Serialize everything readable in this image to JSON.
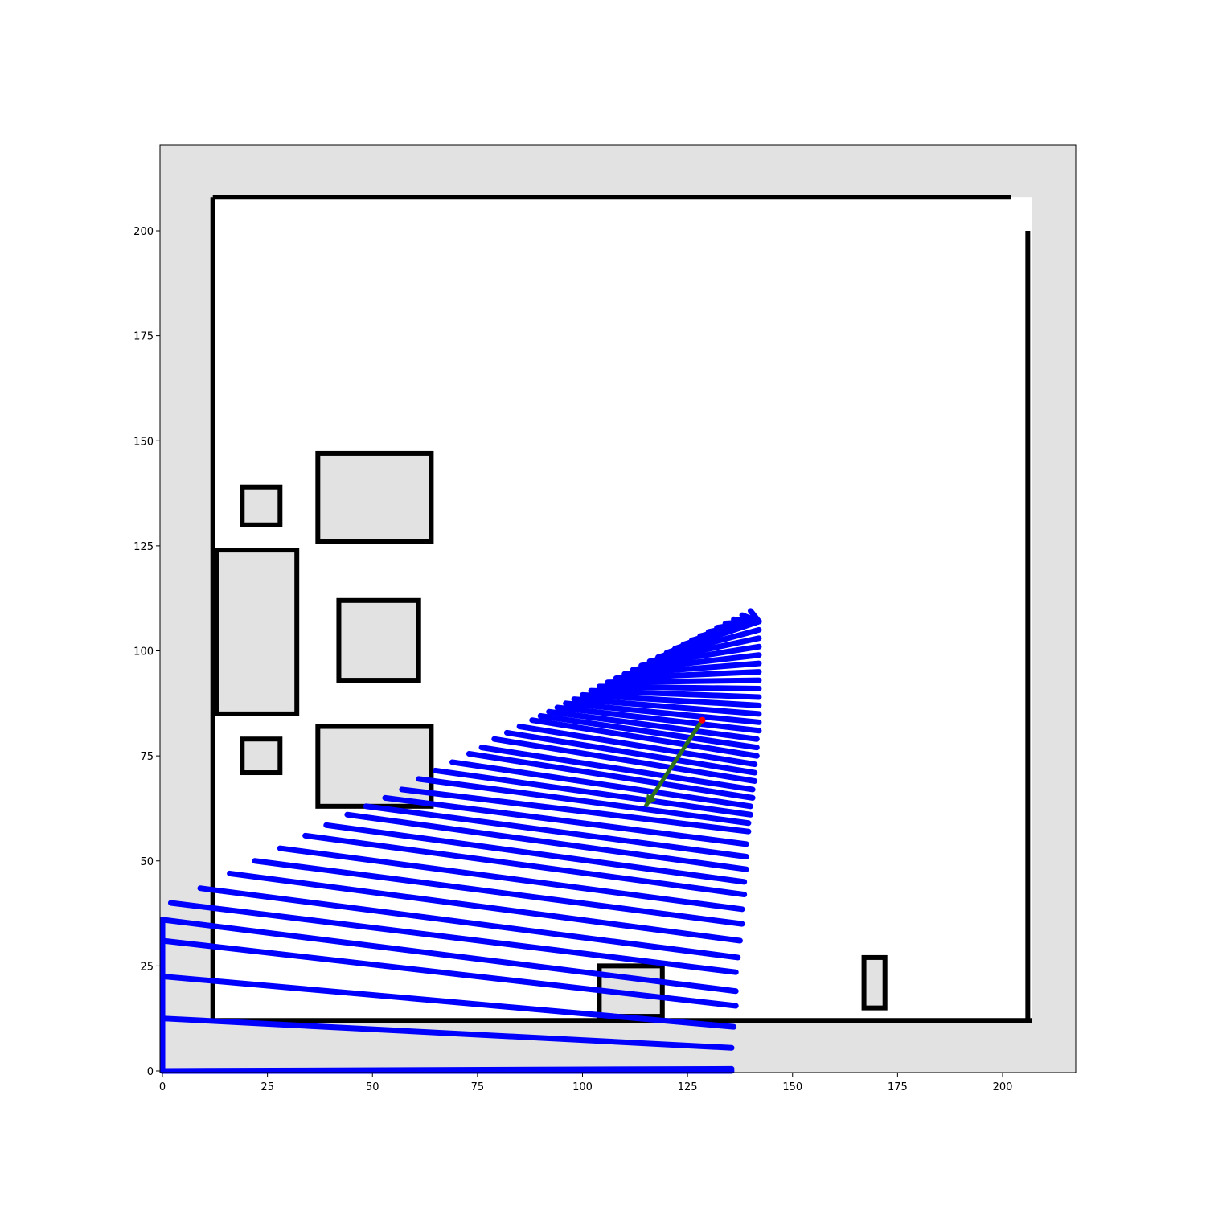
{
  "chart_data": {
    "type": "occupancy_grid_map",
    "title": "",
    "xlabel": "",
    "ylabel": "",
    "xlim": [
      0,
      218
    ],
    "ylim": [
      0,
      220
    ],
    "x_ticks": [
      0,
      25,
      50,
      75,
      100,
      125,
      150,
      175,
      200
    ],
    "y_ticks": [
      0,
      25,
      50,
      75,
      100,
      125,
      150,
      175,
      200
    ],
    "x_tick_labels": [
      "0",
      "25",
      "50",
      "75",
      "100",
      "125",
      "150",
      "175",
      "200"
    ],
    "y_tick_labels": [
      "0",
      "25",
      "50",
      "75",
      "100",
      "125",
      "150",
      "175",
      "200"
    ],
    "colors": {
      "unknown": "#e2e2e2",
      "free": "#ffffff",
      "occupied": "#000000",
      "rays": "#0000ff",
      "robot": "#ff0000",
      "heading_arrow": "#2e6f1a"
    },
    "robot_pose": {
      "x": 128.5,
      "y": 83.5
    },
    "heading_arrow": {
      "from": [
        128.5,
        83.5
      ],
      "to": [
        115,
        63
      ]
    },
    "ray_fan": {
      "description_origin": [
        142,
        110
      ],
      "endpoints": [
        [
          135.5,
          0.5
        ],
        [
          135.5,
          5.5
        ],
        [
          136,
          10.5
        ],
        [
          136.5,
          15.5
        ],
        [
          136.5,
          19
        ],
        [
          136.5,
          23.5
        ],
        [
          137,
          27
        ],
        [
          137.5,
          31
        ],
        [
          138,
          35
        ],
        [
          138,
          38.5
        ],
        [
          138.5,
          42
        ],
        [
          138.5,
          45
        ],
        [
          139,
          48
        ],
        [
          139,
          51
        ],
        [
          139,
          54
        ],
        [
          139.5,
          57
        ],
        [
          139.5,
          59
        ],
        [
          140,
          61
        ],
        [
          140,
          63
        ],
        [
          140.5,
          65
        ],
        [
          140.5,
          67
        ],
        [
          141,
          69
        ],
        [
          141,
          71
        ],
        [
          141,
          73
        ],
        [
          141.5,
          75
        ],
        [
          141.5,
          77
        ],
        [
          141.5,
          79
        ],
        [
          142,
          81
        ],
        [
          142,
          83
        ],
        [
          142,
          85
        ],
        [
          142,
          87
        ],
        [
          142,
          89
        ],
        [
          142,
          91
        ],
        [
          142,
          93
        ],
        [
          142,
          95
        ],
        [
          142,
          97
        ],
        [
          142,
          99
        ],
        [
          142,
          101
        ],
        [
          142,
          103
        ],
        [
          142,
          105
        ],
        [
          142,
          107
        ]
      ],
      "far_endpoints": [
        [
          0,
          0
        ],
        [
          0,
          12.5
        ],
        [
          0,
          22.5
        ],
        [
          0,
          31
        ],
        [
          0,
          36
        ],
        [
          2,
          40
        ],
        [
          9,
          43.5
        ],
        [
          16,
          47
        ],
        [
          22,
          50
        ],
        [
          28,
          53
        ],
        [
          34,
          56
        ],
        [
          39,
          58.5
        ],
        [
          44,
          61
        ],
        [
          48.5,
          63
        ],
        [
          53,
          65
        ],
        [
          57,
          67
        ],
        [
          61,
          69.5
        ],
        [
          65,
          71.5
        ],
        [
          69,
          73.5
        ],
        [
          73,
          75.5
        ],
        [
          76,
          77
        ],
        [
          79,
          79
        ],
        [
          82,
          80.5
        ],
        [
          85,
          82
        ],
        [
          88,
          83.5
        ],
        [
          90,
          84.5
        ],
        [
          92,
          85.5
        ],
        [
          94,
          86.5
        ],
        [
          96,
          87.5
        ],
        [
          98,
          88.5
        ],
        [
          100,
          89.5
        ],
        [
          102,
          90.5
        ],
        [
          104,
          91.5
        ],
        [
          106,
          92.5
        ],
        [
          108,
          93.5
        ],
        [
          110,
          94.5
        ],
        [
          112,
          95.5
        ],
        [
          114,
          96.5
        ],
        [
          116,
          97.5
        ],
        [
          118,
          98.5
        ],
        [
          120,
          99.5
        ],
        [
          122,
          100.5
        ],
        [
          124,
          101.5
        ],
        [
          126,
          102.5
        ],
        [
          128,
          103.5
        ],
        [
          130,
          104.5
        ],
        [
          132,
          105.5
        ],
        [
          134,
          106.5
        ],
        [
          136,
          107.5
        ],
        [
          138,
          108.5
        ],
        [
          140,
          109.5
        ]
      ]
    },
    "map": {
      "known_region": {
        "x": [
          12,
          207
        ],
        "y": [
          12,
          208
        ]
      },
      "outer_walls": [
        {
          "from": [
            12,
            12
          ],
          "to": [
            207,
            12
          ]
        },
        {
          "from": [
            12,
            12
          ],
          "to": [
            12,
            208
          ]
        },
        {
          "from": [
            12,
            208
          ],
          "to": [
            202,
            208
          ]
        },
        {
          "from": [
            206,
            12
          ],
          "to": [
            206,
            200
          ]
        }
      ],
      "rooms": [
        {
          "x": [
            37,
            64
          ],
          "y": [
            126,
            147
          ]
        },
        {
          "x": [
            37,
            64
          ],
          "y": [
            63,
            82
          ]
        },
        {
          "x": [
            42,
            61
          ],
          "y": [
            93,
            112
          ]
        },
        {
          "x": [
            19,
            28
          ],
          "y": [
            130,
            139
          ]
        },
        {
          "x": [
            19,
            28
          ],
          "y": [
            71,
            79
          ]
        },
        {
          "x": [
            13,
            32
          ],
          "y": [
            85,
            124
          ]
        },
        {
          "x": [
            104,
            119
          ],
          "y": [
            13,
            25
          ]
        },
        {
          "x": [
            167,
            172
          ],
          "y": [
            15,
            27
          ]
        }
      ]
    }
  }
}
